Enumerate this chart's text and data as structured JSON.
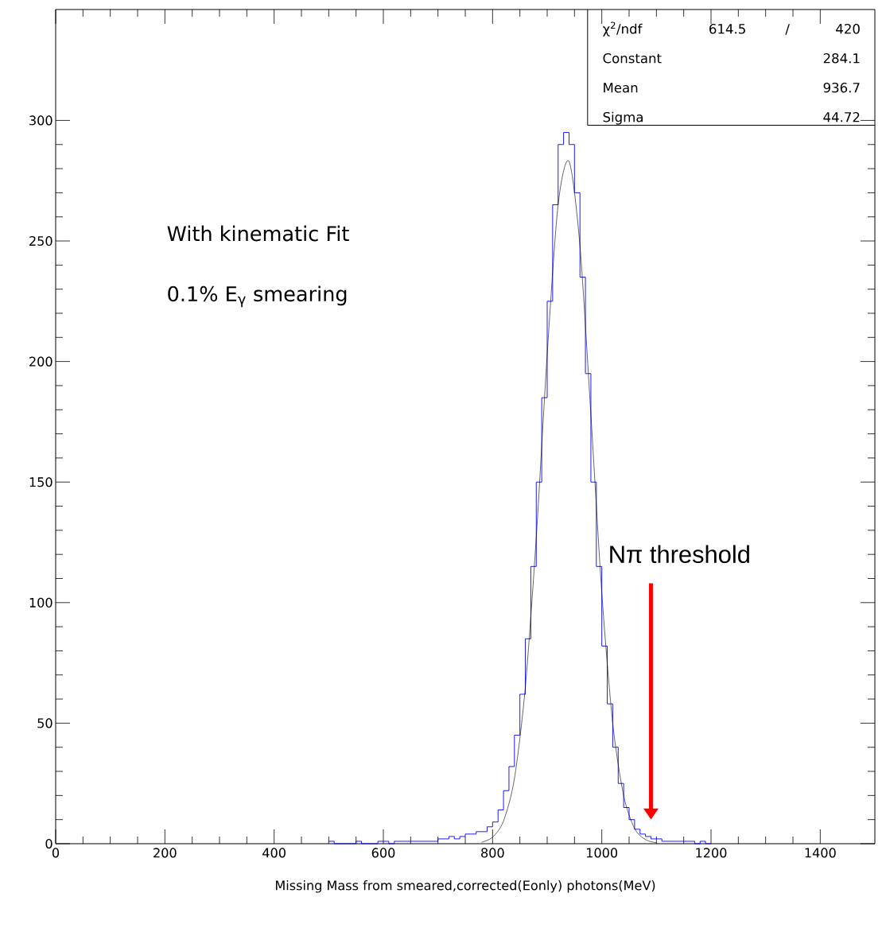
{
  "chart_data": {
    "type": "histogram",
    "xlabel": "Missing Mass from smeared,corrected(Eonly) photons(MeV)",
    "xlim": [
      0,
      1500
    ],
    "ylim": [
      0,
      346
    ],
    "xticks": [
      0,
      200,
      400,
      600,
      800,
      1000,
      1200,
      1400
    ],
    "yticks": [
      0,
      50,
      100,
      150,
      200,
      250,
      300
    ],
    "series": [
      {
        "color": "#0000ff",
        "bins": [
          500,
          510,
          520,
          530,
          540,
          550,
          560,
          570,
          580,
          590,
          600,
          610,
          620,
          630,
          640,
          650,
          660,
          670,
          680,
          690,
          700,
          710,
          720,
          730,
          740,
          750,
          760,
          770,
          780,
          790,
          800,
          810,
          820,
          830,
          840,
          850,
          860,
          870,
          880,
          890,
          900,
          910,
          920,
          930,
          940,
          950,
          960,
          970,
          980,
          990,
          1000,
          1010,
          1020,
          1030,
          1040,
          1050,
          1060,
          1070,
          1080,
          1090,
          1100,
          1110,
          1120,
          1130,
          1140,
          1150,
          1160,
          1170,
          1180,
          1190,
          1200
        ],
        "values": [
          1,
          0,
          0,
          0,
          0,
          1,
          0,
          0,
          0,
          1,
          1,
          0,
          1,
          1,
          1,
          1,
          1,
          1,
          1,
          1,
          2,
          2,
          3,
          2,
          3,
          4,
          4,
          5,
          5,
          7,
          9,
          14,
          22,
          32,
          45,
          62,
          85,
          115,
          150,
          185,
          225,
          265,
          290,
          295,
          290,
          270,
          235,
          195,
          150,
          115,
          82,
          58,
          40,
          25,
          15,
          10,
          6,
          4,
          3,
          2,
          2,
          1,
          1,
          1,
          1,
          1,
          1,
          0,
          1,
          0
        ]
      },
      {
        "type": "line",
        "color": "#000000",
        "x": [
          780,
          800,
          820,
          840,
          860,
          880,
          900,
          920,
          940,
          960,
          980,
          1000,
          1020,
          1040,
          1060,
          1080,
          1100
        ],
        "values": [
          0.6,
          2.7,
          9.4,
          27,
          65,
          127,
          203,
          265,
          283,
          248,
          178,
          104,
          50,
          20,
          6.3,
          1.7,
          0.4
        ]
      }
    ],
    "annotations": [
      "With kinematic Fit",
      "0.1% E$_{γ}$ smearing",
      "Nπ threshold",
      "χ$^{2}$/ndf",
      "614.5",
      "/",
      "420",
      "Constant",
      "284.1",
      "Mean",
      "936.7",
      "Sigma",
      "44.72"
    ]
  }
}
